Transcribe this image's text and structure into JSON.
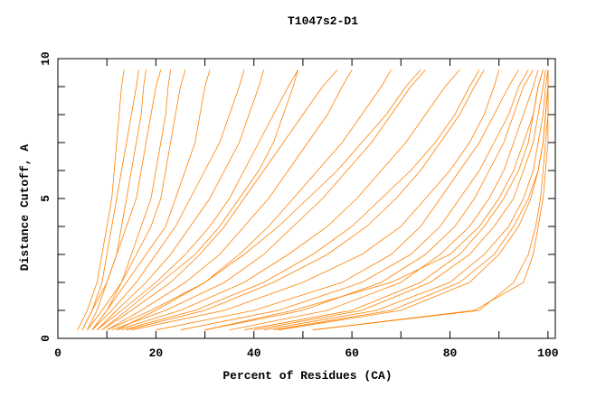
{
  "chart_data": {
    "type": "line",
    "title": "T1047s2-D1",
    "xlabel": "Percent of Residues (CA)",
    "ylabel": "Distance Cutoff, A",
    "xlim": [
      0,
      101.5
    ],
    "ylim": [
      0,
      10
    ],
    "x_ticks": [
      "0",
      "20",
      "40",
      "60",
      "80",
      "100"
    ],
    "y_ticks": [
      "0",
      "5",
      "10"
    ],
    "grid": false,
    "line_color": "#ff8000",
    "y_levels": [
      0.3,
      1,
      2,
      3,
      4,
      5,
      6,
      7,
      8,
      9,
      9.6
    ],
    "series": [
      {
        "x": [
          4,
          6,
          8,
          9,
          10,
          11,
          11.5,
          12,
          12.5,
          13,
          13.5
        ]
      },
      {
        "x": [
          5,
          7,
          9,
          10,
          11,
          12,
          13,
          14,
          15,
          16,
          16.5
        ]
      },
      {
        "x": [
          6,
          8,
          10,
          12,
          13,
          14,
          15,
          16,
          17,
          17.5,
          18
        ]
      },
      {
        "x": [
          5,
          7,
          10,
          12,
          14,
          16,
          17,
          18,
          19,
          20,
          21
        ]
      },
      {
        "x": [
          7,
          10,
          13,
          15,
          17,
          19,
          20,
          21,
          22,
          22.5,
          23
        ]
      },
      {
        "x": [
          6,
          9,
          13,
          16,
          19,
          21,
          22,
          23,
          24,
          25,
          26
        ]
      },
      {
        "x": [
          7,
          10,
          14,
          18,
          22,
          24,
          26,
          28,
          29,
          30,
          31
        ]
      },
      {
        "x": [
          7,
          11,
          16,
          20,
          24,
          27,
          30,
          33,
          35,
          37,
          38
        ]
      },
      {
        "x": [
          8,
          12,
          18,
          23,
          27,
          31,
          34,
          37,
          39,
          41,
          42
        ]
      },
      {
        "x": [
          9,
          14,
          21,
          28,
          33,
          37,
          41,
          44,
          46,
          48,
          49
        ]
      },
      {
        "x": [
          8,
          13,
          20,
          26,
          31,
          35,
          38,
          41,
          44,
          47,
          49
        ]
      },
      {
        "x": [
          9,
          15,
          23,
          29,
          34,
          38,
          42,
          46,
          50,
          54,
          57
        ]
      },
      {
        "x": [
          10,
          17,
          26,
          33,
          38,
          43,
          47,
          51,
          55,
          58,
          60
        ]
      },
      {
        "x": [
          10,
          19,
          30,
          37,
          43,
          48,
          53,
          58,
          62,
          66,
          68
        ]
      },
      {
        "x": [
          12,
          20,
          30,
          38,
          45,
          51,
          57,
          62,
          67,
          71,
          74
        ]
      },
      {
        "x": [
          11,
          22,
          34,
          42,
          48,
          54,
          59,
          64,
          68,
          72,
          75
        ]
      },
      {
        "x": [
          12,
          25,
          38,
          47,
          55,
          61,
          66,
          71,
          75,
          79,
          82
        ]
      },
      {
        "x": [
          13,
          28,
          42,
          52,
          60,
          66,
          72,
          77,
          81,
          84,
          86
        ]
      },
      {
        "x": [
          14,
          30,
          44,
          55,
          63,
          69,
          74,
          78,
          82,
          85,
          87
        ]
      },
      {
        "x": [
          15,
          34,
          50,
          62,
          70,
          75,
          80,
          84,
          87,
          89,
          90
        ]
      },
      {
        "x": [
          20,
          40,
          58,
          68,
          74,
          78,
          82,
          86,
          89,
          92,
          94
        ]
      },
      {
        "x": [
          25,
          45,
          62,
          72,
          78,
          82,
          86,
          89,
          92,
          94,
          96
        ]
      },
      {
        "x": [
          30,
          48,
          68,
          80,
          86,
          90,
          93,
          95,
          97,
          98,
          99
        ]
      },
      {
        "x": [
          30,
          50,
          66,
          75,
          81,
          85,
          88,
          91,
          93,
          95,
          97
        ]
      },
      {
        "x": [
          35,
          55,
          70,
          78,
          84,
          88,
          91,
          93,
          95,
          97,
          98
        ]
      },
      {
        "x": [
          38,
          60,
          74,
          82,
          87,
          91,
          94,
          96,
          97,
          98,
          99
        ]
      },
      {
        "x": [
          40,
          62,
          76,
          84,
          89,
          93,
          95,
          97,
          98,
          99,
          99.5
        ]
      },
      {
        "x": [
          42,
          65,
          80,
          87,
          92,
          95,
          97,
          98,
          99,
          99.5,
          100
        ]
      },
      {
        "x": [
          44,
          68,
          82,
          89,
          93,
          96,
          98,
          99,
          99.5,
          100,
          100
        ]
      },
      {
        "x": [
          45,
          70,
          84,
          90,
          94,
          96.5,
          98,
          99,
          99.5,
          100,
          100
        ]
      },
      {
        "x": [
          52,
          85,
          95,
          97,
          98,
          99,
          99.5,
          100,
          100,
          100,
          100
        ]
      },
      {
        "x": [
          52,
          86,
          93,
          96,
          97.5,
          98.5,
          99,
          99.5,
          100,
          100,
          100
        ]
      }
    ]
  }
}
